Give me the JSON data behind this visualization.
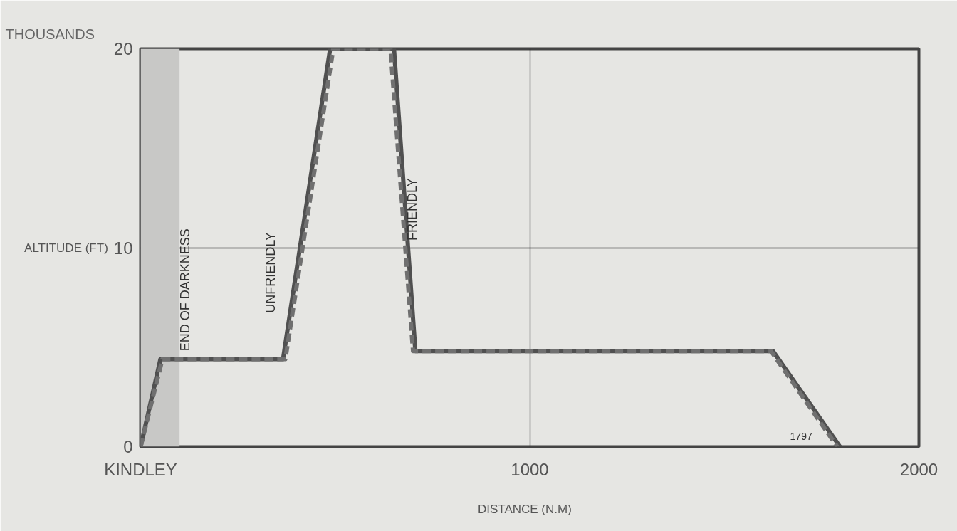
{
  "chart_data": {
    "type": "line",
    "xlabel": "DISTANCE    (N.M)",
    "ylabel": "ALTITUDE (FT)",
    "series": [
      {
        "color": "#505050",
        "line_style": "solid",
        "x": [
          0,
          51,
          366,
          487,
          651,
          706,
          1625,
          1797
        ],
        "values": [
          0,
          4.4,
          4.4,
          20,
          20,
          4.8,
          4.8,
          0
        ]
      },
      {
        "color": "#707070",
        "line_style": "dashed",
        "x": [
          0,
          56,
          372,
          495,
          642,
          700,
          1620,
          1790
        ],
        "values": [
          0,
          4.4,
          4.4,
          20,
          20,
          4.8,
          4.8,
          0
        ]
      }
    ],
    "xlim": [
      0,
      2000
    ],
    "ylim": [
      0,
      20
    ],
    "xticks": [
      {
        "value": 0,
        "label": "KINDLEY"
      },
      1000,
      2000
    ],
    "yticks": [
      0,
      10,
      20
    ],
    "grid": true,
    "bands": [
      {
        "axis": "x",
        "from": 0,
        "to": 100,
        "color": "#c8c8c6",
        "label": "END OF DARKNESS"
      }
    ],
    "annotations": [
      "THOUSANDS",
      {
        "text": "UNFRIENDLY",
        "x": 378,
        "y": 6
      },
      {
        "text": "FRIENDLY",
        "x": 687,
        "y": 10
      },
      {
        "text": "1797",
        "x": 1797,
        "y": 0
      }
    ]
  }
}
